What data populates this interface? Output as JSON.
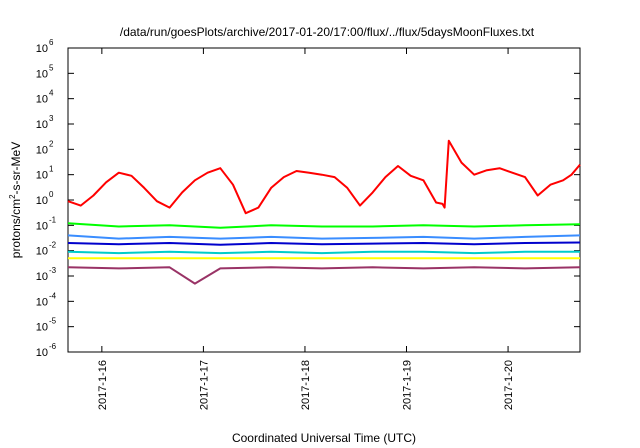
{
  "chart_data": {
    "type": "line",
    "title": "/data/run/goesPlots/archive/2017-01-20/17:00/flux/../flux/5daysMoonFluxes.txt",
    "xlabel": "Coordinated Universal Time (UTC)",
    "ylabel": {
      "prefix": "protons/cm",
      "sup": "2",
      "suffix": "-s-sr-MeV"
    },
    "y_scale": "log",
    "ylim": [
      1e-06,
      1000000.0
    ],
    "y_ticks": [
      {
        "exp": "-6",
        "value": 1e-06
      },
      {
        "exp": "-5",
        "value": 1e-05
      },
      {
        "exp": "-4",
        "value": 0.0001
      },
      {
        "exp": "-3",
        "value": 0.001
      },
      {
        "exp": "-2",
        "value": 0.01
      },
      {
        "exp": "-1",
        "value": 0.1
      },
      {
        "exp": "0",
        "value": 1
      },
      {
        "exp": "1",
        "value": 10
      },
      {
        "exp": "2",
        "value": 100
      },
      {
        "exp": "3",
        "value": 1000
      },
      {
        "exp": "4",
        "value": 10000
      },
      {
        "exp": "5",
        "value": 100000
      },
      {
        "exp": "6",
        "value": 1000000
      }
    ],
    "xlim": [
      "2017-01-15 16:00",
      "2017-01-20 17:00"
    ],
    "x_ticks": [
      "2017-1-16",
      "2017-1-17",
      "2017-1-18",
      "2017-1-19",
      "2017-1-20"
    ],
    "x_tick_values": [
      "2017-01-16 00:00",
      "2017-01-17 00:00",
      "2017-01-18 00:00",
      "2017-01-19 00:00",
      "2017-01-20 00:00"
    ],
    "grid": false,
    "series": [
      {
        "color": "#ff0000",
        "width": 2,
        "x": [
          "2017-01-15 16:00",
          "2017-01-15 19:00",
          "2017-01-15 22:00",
          "2017-01-16 01:00",
          "2017-01-16 04:00",
          "2017-01-16 07:00",
          "2017-01-16 10:00",
          "2017-01-16 13:00",
          "2017-01-16 16:00",
          "2017-01-16 19:00",
          "2017-01-16 22:00",
          "2017-01-17 01:00",
          "2017-01-17 04:00",
          "2017-01-17 07:00",
          "2017-01-17 10:00",
          "2017-01-17 13:00",
          "2017-01-17 16:00",
          "2017-01-17 19:00",
          "2017-01-17 22:00",
          "2017-01-18 01:00",
          "2017-01-18 04:00",
          "2017-01-18 07:00",
          "2017-01-18 10:00",
          "2017-01-18 13:00",
          "2017-01-18 16:00",
          "2017-01-18 19:00",
          "2017-01-18 22:00",
          "2017-01-19 01:00",
          "2017-01-19 04:00",
          "2017-01-19 07:00",
          "2017-01-19 08:30",
          "2017-01-19 09:00",
          "2017-01-19 10:00",
          "2017-01-19 13:00",
          "2017-01-19 16:00",
          "2017-01-19 19:00",
          "2017-01-19 22:00",
          "2017-01-20 01:00",
          "2017-01-20 04:00",
          "2017-01-20 07:00",
          "2017-01-20 10:00",
          "2017-01-20 13:00",
          "2017-01-20 15:00",
          "2017-01-20 17:00"
        ],
        "y": [
          0.9,
          0.6,
          1.5,
          5,
          12,
          9,
          3,
          0.9,
          0.5,
          2,
          6,
          12,
          18,
          4,
          0.3,
          0.5,
          3,
          8,
          14,
          12,
          10,
          8,
          3,
          0.6,
          2,
          8,
          22,
          9,
          6,
          0.8,
          0.7,
          0.5,
          220,
          30,
          10,
          15,
          18,
          12,
          8,
          1.5,
          4,
          6,
          10,
          25
        ]
      },
      {
        "color": "#00ff00",
        "width": 2,
        "x": [
          "2017-01-15 16:00",
          "2017-01-16 04:00",
          "2017-01-16 16:00",
          "2017-01-17 04:00",
          "2017-01-17 16:00",
          "2017-01-18 04:00",
          "2017-01-18 16:00",
          "2017-01-19 04:00",
          "2017-01-19 16:00",
          "2017-01-20 04:00",
          "2017-01-20 17:00"
        ],
        "y": [
          0.12,
          0.09,
          0.1,
          0.08,
          0.1,
          0.09,
          0.09,
          0.1,
          0.09,
          0.1,
          0.11
        ]
      },
      {
        "color": "#3a8dff",
        "width": 2,
        "x": [
          "2017-01-15 16:00",
          "2017-01-16 04:00",
          "2017-01-16 16:00",
          "2017-01-17 04:00",
          "2017-01-17 16:00",
          "2017-01-18 04:00",
          "2017-01-18 16:00",
          "2017-01-19 04:00",
          "2017-01-19 16:00",
          "2017-01-20 04:00",
          "2017-01-20 17:00"
        ],
        "y": [
          0.04,
          0.03,
          0.035,
          0.03,
          0.035,
          0.03,
          0.032,
          0.035,
          0.03,
          0.035,
          0.04
        ]
      },
      {
        "color": "#0000cc",
        "width": 2,
        "x": [
          "2017-01-15 16:00",
          "2017-01-16 04:00",
          "2017-01-16 16:00",
          "2017-01-17 04:00",
          "2017-01-17 16:00",
          "2017-01-18 04:00",
          "2017-01-18 16:00",
          "2017-01-19 04:00",
          "2017-01-19 16:00",
          "2017-01-20 04:00",
          "2017-01-20 17:00"
        ],
        "y": [
          0.02,
          0.018,
          0.02,
          0.017,
          0.02,
          0.018,
          0.019,
          0.02,
          0.018,
          0.02,
          0.021
        ]
      },
      {
        "color": "#00cccc",
        "width": 2,
        "x": [
          "2017-01-15 16:00",
          "2017-01-16 04:00",
          "2017-01-16 16:00",
          "2017-01-17 04:00",
          "2017-01-17 16:00",
          "2017-01-18 04:00",
          "2017-01-18 16:00",
          "2017-01-19 04:00",
          "2017-01-19 16:00",
          "2017-01-20 04:00",
          "2017-01-20 17:00"
        ],
        "y": [
          0.009,
          0.008,
          0.009,
          0.008,
          0.009,
          0.008,
          0.009,
          0.009,
          0.008,
          0.009,
          0.009
        ]
      },
      {
        "color": "#ffff00",
        "width": 2,
        "x": [
          "2017-01-15 16:00",
          "2017-01-16 16:00",
          "2017-01-17 16:00",
          "2017-01-18 16:00",
          "2017-01-19 16:00",
          "2017-01-20 17:00"
        ],
        "y": [
          0.005,
          0.005,
          0.005,
          0.005,
          0.005,
          0.005
        ]
      },
      {
        "color": "#993366",
        "width": 2,
        "x": [
          "2017-01-15 16:00",
          "2017-01-16 04:00",
          "2017-01-16 16:00",
          "2017-01-16 22:00",
          "2017-01-17 04:00",
          "2017-01-17 16:00",
          "2017-01-18 04:00",
          "2017-01-18 16:00",
          "2017-01-19 04:00",
          "2017-01-19 16:00",
          "2017-01-20 04:00",
          "2017-01-20 17:00"
        ],
        "y": [
          0.0022,
          0.002,
          0.0022,
          0.0005,
          0.002,
          0.0022,
          0.002,
          0.0022,
          0.002,
          0.0022,
          0.002,
          0.0022
        ]
      }
    ]
  }
}
